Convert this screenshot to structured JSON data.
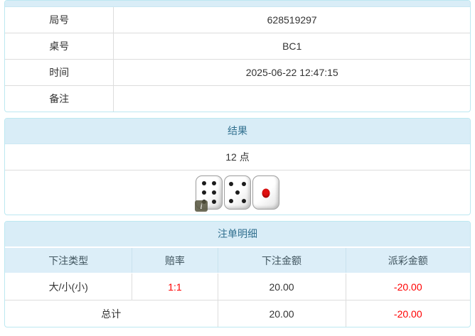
{
  "game_info": {
    "rows": [
      {
        "label": "局号",
        "value": "628519297"
      },
      {
        "label": "桌号",
        "value": "BC1"
      },
      {
        "label": "时间",
        "value": "2025-06-22 12:47:15"
      },
      {
        "label": "备注",
        "value": ""
      }
    ]
  },
  "result": {
    "title": "结果",
    "points": "12 点",
    "dice": [
      6,
      5,
      1
    ],
    "info_badge": "i"
  },
  "bets": {
    "title": "注单明细",
    "columns": [
      "下注类型",
      "赔率",
      "下注金额",
      "派彩金额"
    ],
    "rows": [
      {
        "type": "大/小(小)",
        "odds": "1:1",
        "amount": "20.00",
        "payout": "-20.00"
      }
    ],
    "total": {
      "label": "总计",
      "amount": "20.00",
      "payout": "-20.00"
    }
  },
  "colors": {
    "panel_border": "#bce8f1",
    "heading_bg": "#d9edf7",
    "heading_text": "#31708f",
    "thead_bg": "#dceef8",
    "cell_border": "#dddddd",
    "body_text": "#333333",
    "negative_text": "#ff0000",
    "pip_black": "#1c1c1c",
    "pip_red": "#e01010"
  }
}
